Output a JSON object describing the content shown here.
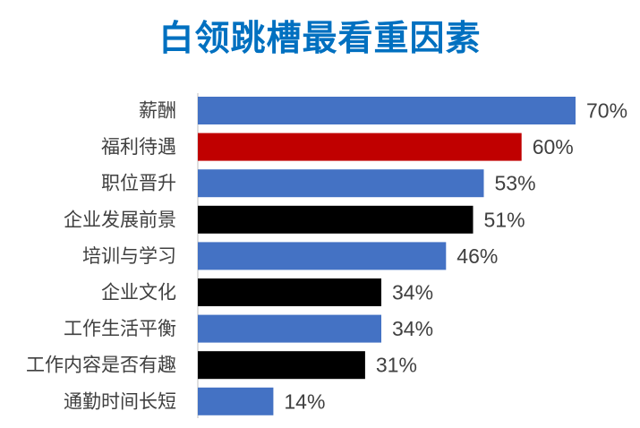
{
  "chart_data": {
    "type": "bar",
    "orientation": "horizontal",
    "title": "白领跳槽最看重因素",
    "categories": [
      "薪酬",
      "福利待遇",
      "职位晋升",
      "企业发展前景",
      "培训与学习",
      "企业文化",
      "工作生活平衡",
      "工作内容是否有趣",
      "通勤时间长短"
    ],
    "values": [
      70,
      60,
      53,
      51,
      46,
      34,
      34,
      31,
      14
    ],
    "value_labels": [
      "70%",
      "60%",
      "53%",
      "51%",
      "46%",
      "34%",
      "34%",
      "31%",
      "14%"
    ],
    "bar_colors": [
      "#4472c4",
      "#c00000",
      "#4472c4",
      "#000000",
      "#4472c4",
      "#000000",
      "#4472c4",
      "#000000",
      "#4472c4"
    ],
    "xlim": [
      0,
      70
    ],
    "xlabel": "",
    "ylabel": "",
    "grid": false,
    "legend": "none"
  },
  "colors": {
    "title": "#0070c0",
    "blue": "#4472c4",
    "red": "#c00000",
    "black": "#000000"
  }
}
